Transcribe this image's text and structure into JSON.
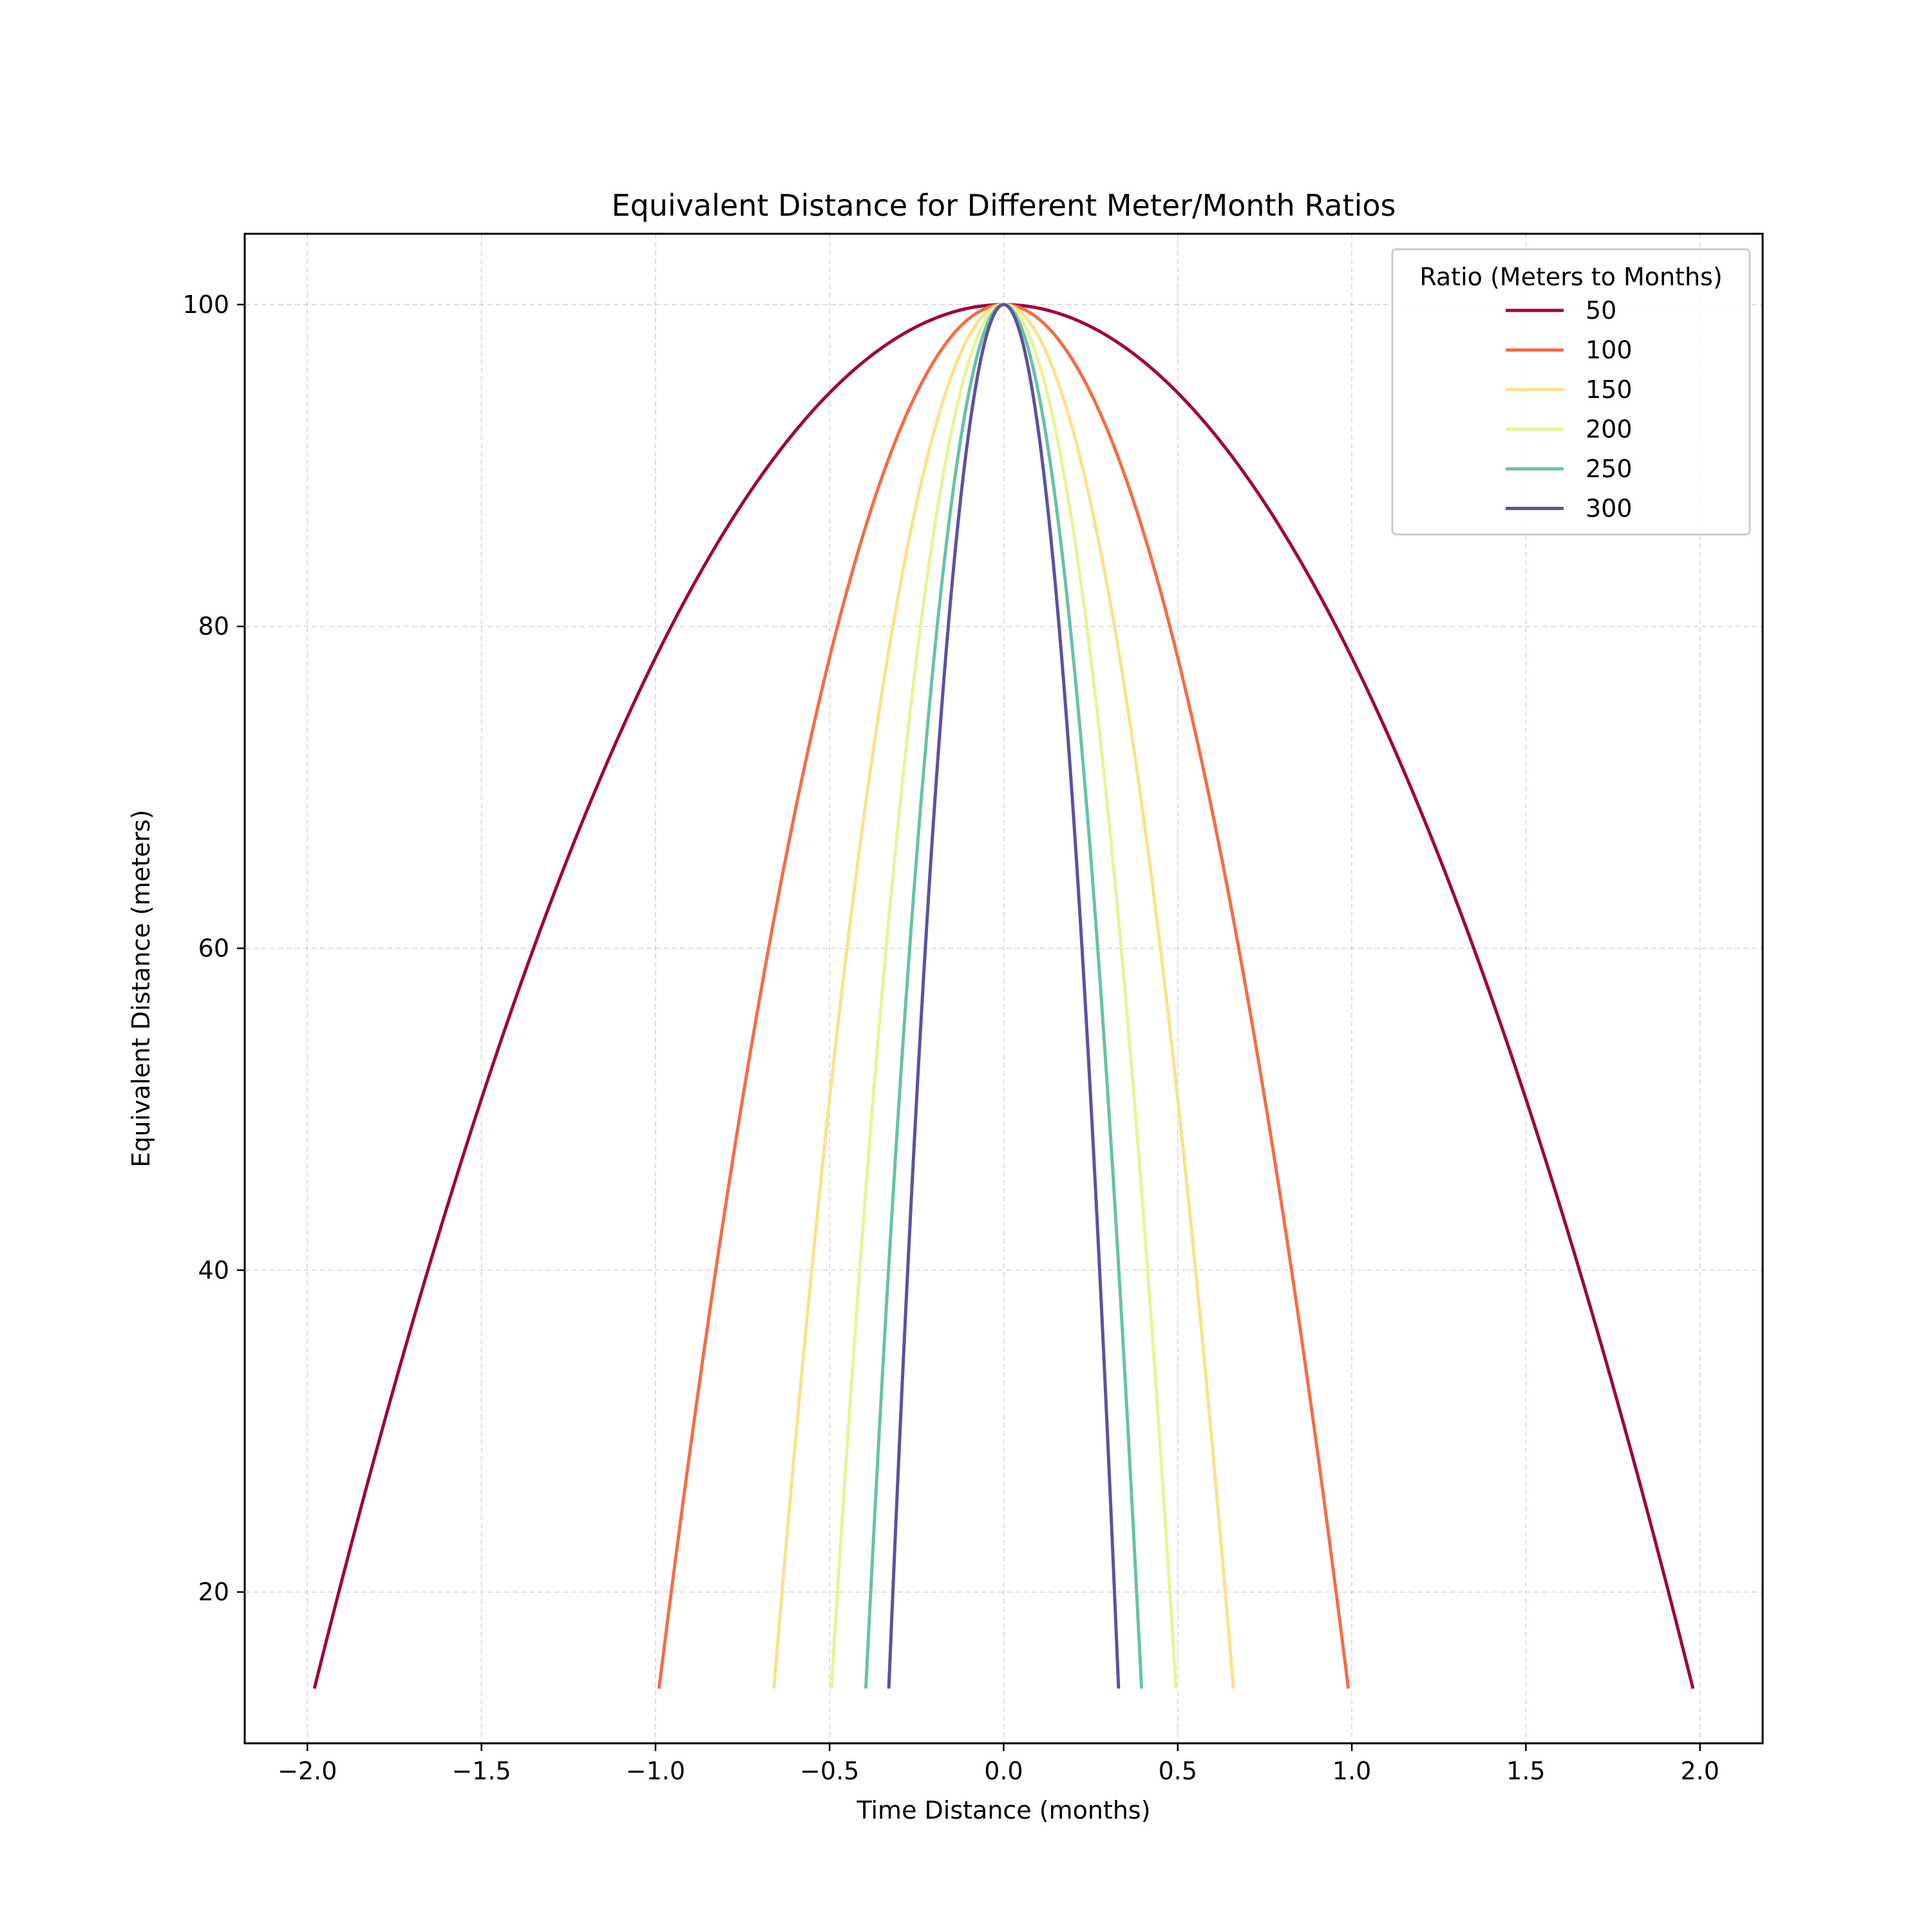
{
  "chart_data": {
    "type": "line",
    "title": "Equivalent Distance for Different Meter/Month Ratios",
    "xlabel": "Time Distance (months)",
    "ylabel": "Equivalent Distance (meters)",
    "xlim": [
      -2.18,
      2.18
    ],
    "ylim": [
      10.6,
      104.4
    ],
    "x_ticks": [
      -2.0,
      -1.5,
      -1.0,
      -0.5,
      0.0,
      0.5,
      1.0,
      1.5,
      2.0
    ],
    "x_tick_labels": [
      "−2.0",
      "−1.5",
      "−1.0",
      "−0.5",
      "0.0",
      "0.5",
      "1.0",
      "1.5",
      "2.0"
    ],
    "y_ticks": [
      20,
      40,
      60,
      80,
      100
    ],
    "y_tick_labels": [
      "20",
      "40",
      "60",
      "80",
      "100"
    ],
    "grid": true,
    "legend": {
      "title": "Ratio (Meters to Months)",
      "placement": "top-right"
    },
    "curve": {
      "peak": 100,
      "y_min": 14,
      "x_extent_at_y_min": [
        -1.98,
        1.98
      ]
    },
    "series": [
      {
        "name": "50",
        "ratio": 50,
        "color": "#9e0142",
        "x_range": [
          -1.98,
          1.98
        ]
      },
      {
        "name": "100",
        "ratio": 100,
        "color": "#f46d43",
        "x_range": [
          -0.99,
          0.99
        ]
      },
      {
        "name": "150",
        "ratio": 150,
        "color": "#fee08b",
        "x_range": [
          -0.66,
          0.66
        ]
      },
      {
        "name": "200",
        "ratio": 200,
        "color": "#e6f598",
        "x_range": [
          -0.495,
          0.495
        ]
      },
      {
        "name": "250",
        "ratio": 250,
        "color": "#66c2a5",
        "x_range": [
          -0.396,
          0.396
        ]
      },
      {
        "name": "300",
        "ratio": 300,
        "color": "#5e4fa2",
        "x_range": [
          -0.33,
          0.33
        ]
      }
    ]
  }
}
